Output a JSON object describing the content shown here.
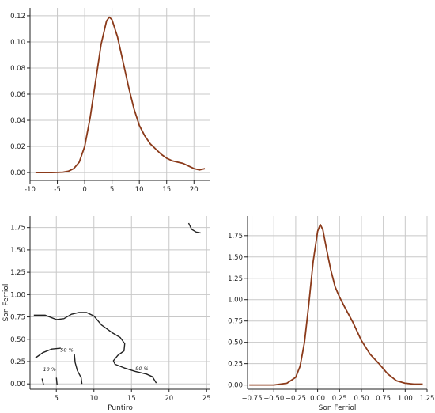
{
  "chart_data": [
    {
      "type": "line",
      "title": "",
      "xlabel": "",
      "ylabel": "",
      "xlim": [
        -10,
        23
      ],
      "ylim": [
        -0.006,
        0.126
      ],
      "xticks": [
        -10,
        -5,
        0,
        5,
        10,
        15,
        20
      ],
      "yticks": [
        0.0,
        0.02,
        0.04,
        0.06,
        0.08,
        0.1,
        0.12
      ],
      "ytick_labels": [
        "0.00",
        "0.02",
        "0.04",
        "0.06",
        "0.08",
        "0.10",
        "0.12"
      ],
      "grid": true,
      "color": "#8b3a1a",
      "series": [
        {
          "x": [
            -9,
            -6,
            -4,
            -3,
            -2,
            -1,
            0,
            1,
            2,
            3,
            4,
            4.5,
            5,
            6,
            7,
            8,
            9,
            10,
            11,
            12,
            13,
            14,
            15,
            16,
            17,
            18,
            19,
            20,
            21,
            22
          ],
          "y": [
            0.0,
            0.0,
            0.0003,
            0.001,
            0.003,
            0.008,
            0.02,
            0.042,
            0.07,
            0.098,
            0.116,
            0.119,
            0.117,
            0.104,
            0.085,
            0.066,
            0.049,
            0.036,
            0.028,
            0.022,
            0.018,
            0.014,
            0.011,
            0.009,
            0.008,
            0.007,
            0.005,
            0.003,
            0.002,
            0.003
          ]
        }
      ]
    },
    {
      "type": "contour",
      "title": "",
      "xlabel": "Puntiro",
      "ylabel": "Son Ferriol",
      "xlim": [
        1.5,
        25.5
      ],
      "ylim": [
        -0.06,
        1.88
      ],
      "xticks": [
        5,
        10,
        15,
        20,
        25
      ],
      "yticks": [
        0.0,
        0.25,
        0.5,
        0.75,
        1.0,
        1.25,
        1.5,
        1.75
      ],
      "ytick_labels": [
        "0.00",
        "0.25",
        "0.50",
        "0.75",
        "1.00",
        "1.25",
        "1.50",
        "1.75"
      ],
      "grid": true,
      "color": "#222222",
      "contour_labels": [
        "10 %",
        "50 %",
        "90 %"
      ],
      "contours": [
        {
          "level": "90 %",
          "points": [
            [
              2.0,
              0.77
            ],
            [
              3.5,
              0.77
            ],
            [
              5.0,
              0.72
            ],
            [
              6.0,
              0.73
            ],
            [
              7.0,
              0.78
            ],
            [
              8.0,
              0.8
            ],
            [
              9.0,
              0.8
            ],
            [
              10.0,
              0.76
            ],
            [
              11.0,
              0.66
            ],
            [
              12.5,
              0.57
            ],
            [
              13.5,
              0.52
            ],
            [
              14.1,
              0.45
            ],
            [
              14.0,
              0.37
            ],
            [
              13.2,
              0.32
            ],
            [
              12.6,
              0.26
            ],
            [
              12.8,
              0.22
            ],
            [
              14.0,
              0.18
            ],
            [
              15.5,
              0.14
            ],
            [
              17.0,
              0.11
            ],
            [
              17.8,
              0.08
            ],
            [
              18.3,
              0.01
            ]
          ]
        },
        {
          "level": "50 %",
          "points": [
            [
              2.2,
              0.29
            ],
            [
              3.2,
              0.35
            ],
            [
              4.4,
              0.39
            ],
            [
              5.6,
              0.4
            ]
          ]
        },
        {
          "level": "50 %",
          "points": [
            [
              7.4,
              0.33
            ],
            [
              7.5,
              0.24
            ],
            [
              7.8,
              0.15
            ],
            [
              8.3,
              0.07
            ],
            [
              8.4,
              0.0
            ]
          ]
        },
        {
          "level": "10 %",
          "points": [
            [
              3.1,
              0.06
            ],
            [
              3.3,
              -0.01
            ]
          ]
        },
        {
          "level": "10 %",
          "points": [
            [
              5.0,
              0.07
            ],
            [
              5.1,
              -0.01
            ]
          ]
        },
        {
          "level": "",
          "points": [
            [
              22.6,
              1.8
            ],
            [
              23.0,
              1.73
            ],
            [
              23.6,
              1.7
            ],
            [
              24.2,
              1.69
            ]
          ]
        }
      ],
      "label_positions": [
        {
          "text": "10 %",
          "x": 4.1,
          "y": 0.16
        },
        {
          "text": "50 %",
          "x": 6.4,
          "y": 0.38
        },
        {
          "text": "90 %",
          "x": 16.4,
          "y": 0.17
        }
      ]
    },
    {
      "type": "line",
      "title": "",
      "xlabel": "Son Ferriol",
      "ylabel": "",
      "xlim": [
        -0.8,
        1.25
      ],
      "ylim": [
        -0.05,
        1.98
      ],
      "xticks": [
        -0.75,
        -0.5,
        -0.25,
        0.0,
        0.25,
        0.5,
        0.75,
        1.0,
        1.25
      ],
      "xtick_labels": [
        "−0.75",
        "−0.50",
        "−0.25",
        "0.00",
        "0.25",
        "0.50",
        "0.75",
        "1.00",
        "1.25"
      ],
      "yticks": [
        0.0,
        0.25,
        0.5,
        0.75,
        1.0,
        1.25,
        1.5,
        1.75
      ],
      "ytick_labels": [
        "0.00",
        "0.25",
        "0.50",
        "0.75",
        "1.00",
        "1.25",
        "1.50",
        "1.75"
      ],
      "grid": true,
      "color": "#8b3a1a",
      "series": [
        {
          "x": [
            -0.78,
            -0.5,
            -0.35,
            -0.25,
            -0.2,
            -0.15,
            -0.1,
            -0.05,
            0.0,
            0.03,
            0.06,
            0.1,
            0.15,
            0.2,
            0.25,
            0.3,
            0.4,
            0.5,
            0.6,
            0.7,
            0.8,
            0.9,
            1.0,
            1.1,
            1.2
          ],
          "y": [
            0.0,
            0.0,
            0.02,
            0.09,
            0.22,
            0.5,
            0.95,
            1.45,
            1.8,
            1.88,
            1.82,
            1.6,
            1.35,
            1.15,
            1.03,
            0.93,
            0.74,
            0.52,
            0.36,
            0.25,
            0.13,
            0.05,
            0.02,
            0.01,
            0.01
          ]
        }
      ]
    }
  ]
}
